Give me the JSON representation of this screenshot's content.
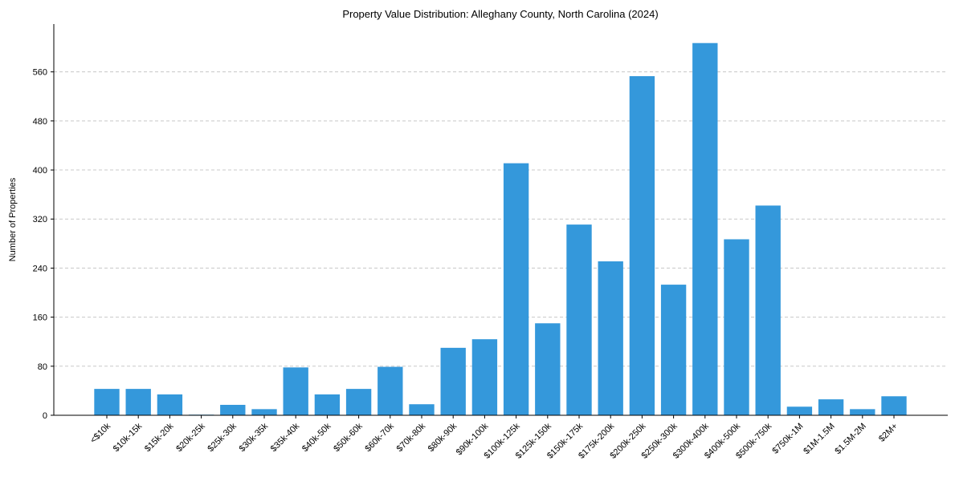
{
  "chart_data": {
    "type": "bar",
    "title": "Property Value Distribution: Alleghany County, North Carolina (2024)",
    "xlabel": "",
    "ylabel": "Number of Properties",
    "categories": [
      "<$10k",
      "$10k-15k",
      "$15k-20k",
      "$20k-25k",
      "$25k-30k",
      "$30k-35k",
      "$35k-40k",
      "$40k-50k",
      "$50k-60k",
      "$60k-70k",
      "$70k-80k",
      "$80k-90k",
      "$90k-100k",
      "$100k-125k",
      "$125k-150k",
      "$150k-175k",
      "$175k-200k",
      "$200k-250k",
      "$250k-300k",
      "$300k-400k",
      "$400k-500k",
      "$500k-750k",
      "$750k-1M",
      "$1M-1.5M",
      "$1.5M-2M",
      "$2M+"
    ],
    "values": [
      43,
      43,
      34,
      1,
      17,
      10,
      78,
      34,
      43,
      79,
      18,
      110,
      124,
      411,
      150,
      311,
      251,
      553,
      213,
      607,
      287,
      342,
      14,
      26,
      10,
      31
    ],
    "yticks": [
      0,
      80,
      160,
      240,
      320,
      400,
      480,
      560
    ],
    "ylim": [
      0,
      638
    ],
    "grid": true,
    "bar_color": "#3498db"
  }
}
